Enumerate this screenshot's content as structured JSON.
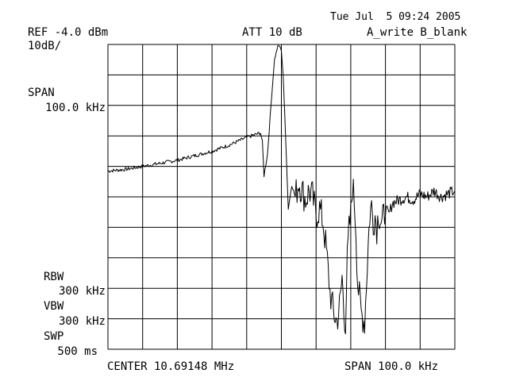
{
  "header": {
    "timestamp": "Tue Jul  5 09:24 2005",
    "ref": "REF -4.0 dBm",
    "att": "ATT 10 dB",
    "trace_mode": "A_write B_blank",
    "scale": "10dB/"
  },
  "side": {
    "span_label": "SPAN",
    "span_value": "100.0 kHz",
    "rbw_label": "RBW",
    "rbw_value": "300 kHz",
    "vbw_label": "VBW",
    "vbw_value": "300 kHz",
    "swp_label": "SWP",
    "swp_value": "500 ms"
  },
  "footer": {
    "center": "CENTER 10.69148 MHz",
    "span": "SPAN 100.0 kHz"
  },
  "colors": {
    "trace": "#000000",
    "grid": "#000000",
    "background": "#ffffff"
  },
  "chart_data": {
    "type": "line",
    "title": "",
    "xlabel": "",
    "ylabel": "",
    "x_unit": "kHz offset from center",
    "y_unit": "dBm",
    "xlim": [
      -50,
      50
    ],
    "ylim": [
      -104,
      -4
    ],
    "grid": true,
    "grid_divisions": {
      "x": 10,
      "y": 10
    },
    "legend": "none",
    "series": [
      {
        "values_note": "",
        "x": [
          -50,
          -45,
          -40,
          -35,
          -30,
          -25,
          -20,
          -15,
          -10,
          -6,
          -5.5,
          -5,
          -4,
          -3,
          -2,
          -1,
          -0.5,
          0,
          0.5,
          1,
          2,
          3,
          4,
          5,
          6,
          7,
          8,
          9,
          10,
          11,
          12,
          13,
          14,
          15,
          16,
          17,
          17.5,
          18,
          18.5,
          19,
          19.5,
          20,
          20.5,
          21,
          21.5,
          22,
          23,
          24,
          25,
          25.5,
          26,
          26.5,
          27,
          27.5,
          28,
          29,
          30,
          31,
          32,
          34,
          36,
          38,
          40,
          42,
          44,
          46,
          48,
          50
        ],
        "y": [
          -45.5,
          -45,
          -44,
          -43,
          -42,
          -40.5,
          -39,
          -37,
          -34.5,
          -33,
          -36,
          -47,
          -40,
          -24,
          -9,
          -4.5,
          -4.5,
          -6,
          -14,
          -28,
          -58,
          -50,
          -54,
          -49,
          -52,
          -55,
          -52,
          -54,
          -60,
          -58,
          -62,
          -72,
          -85,
          -92,
          -95,
          -88,
          -80,
          -92,
          -95,
          -75,
          -65,
          -60,
          -50,
          -55,
          -65,
          -82,
          -92,
          -95,
          -70,
          -60,
          -57,
          -62,
          -60,
          -64,
          -59,
          -63,
          -58,
          -60,
          -56,
          -55,
          -54,
          -55,
          -53,
          -54,
          -52,
          -54,
          -53,
          -52
        ]
      }
    ]
  }
}
